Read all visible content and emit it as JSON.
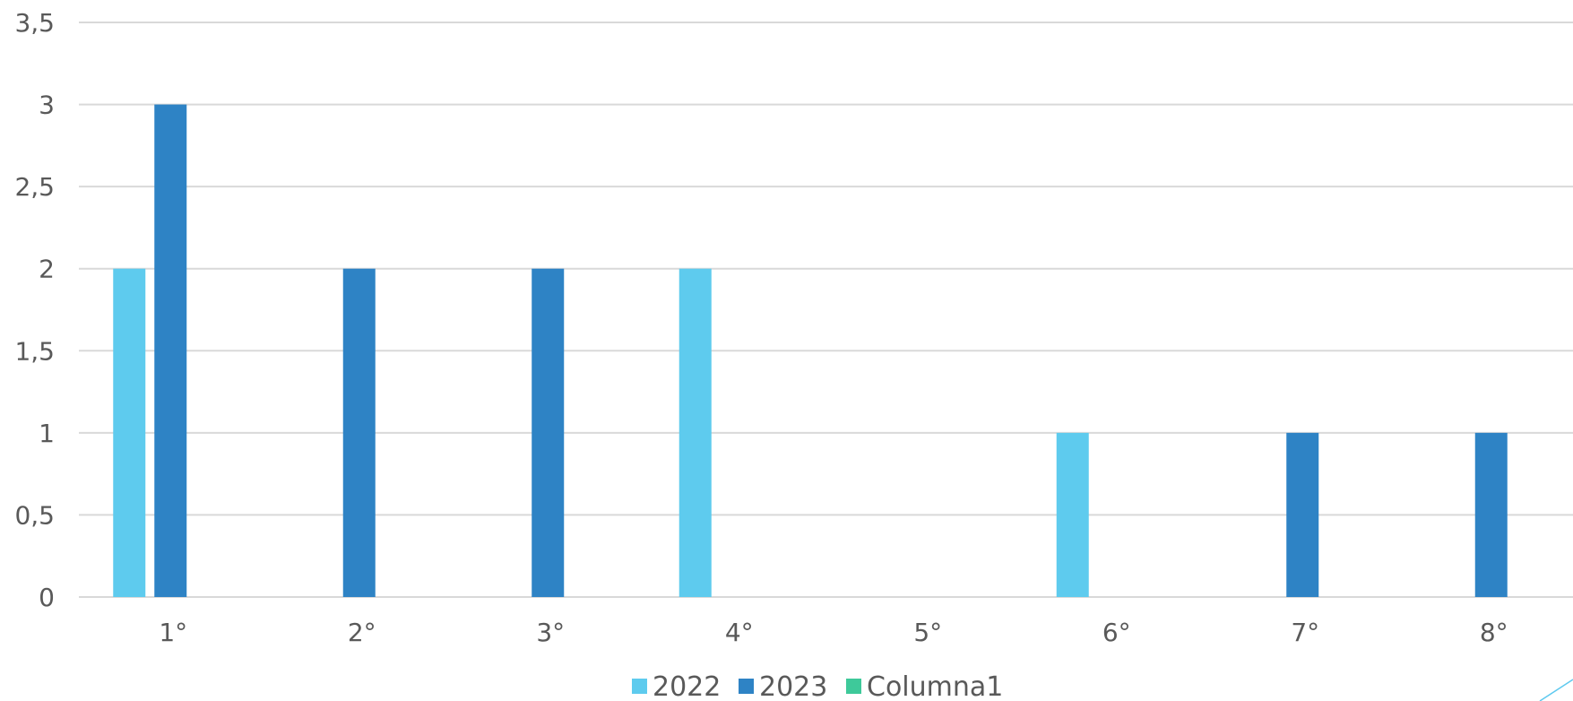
{
  "chart_data": {
    "type": "bar",
    "categories": [
      "1°",
      "2°",
      "3°",
      "4°",
      "5°",
      "6°",
      "7°",
      "8°"
    ],
    "series": [
      {
        "name": "2022",
        "color": "#5ecbee",
        "values": [
          2,
          0,
          0,
          2,
          0,
          1,
          0,
          0
        ]
      },
      {
        "name": "2023",
        "color": "#2e83c5",
        "values": [
          3,
          2,
          2,
          0,
          0,
          0,
          1,
          1
        ]
      },
      {
        "name": "Columna1",
        "color": "#3ec99a",
        "values": [
          0,
          0,
          0,
          0,
          0,
          0,
          0,
          0
        ]
      }
    ],
    "ylim": [
      0,
      3.5
    ],
    "yticks": [
      0,
      0.5,
      1,
      1.5,
      2,
      2.5,
      3,
      3.5
    ],
    "ytick_labels": [
      "0",
      "0,5",
      "1",
      "1,5",
      "2",
      "2,5",
      "3",
      "3,5"
    ],
    "grid": true,
    "legend_position": "bottom",
    "title": "",
    "xlabel": "",
    "ylabel": ""
  }
}
